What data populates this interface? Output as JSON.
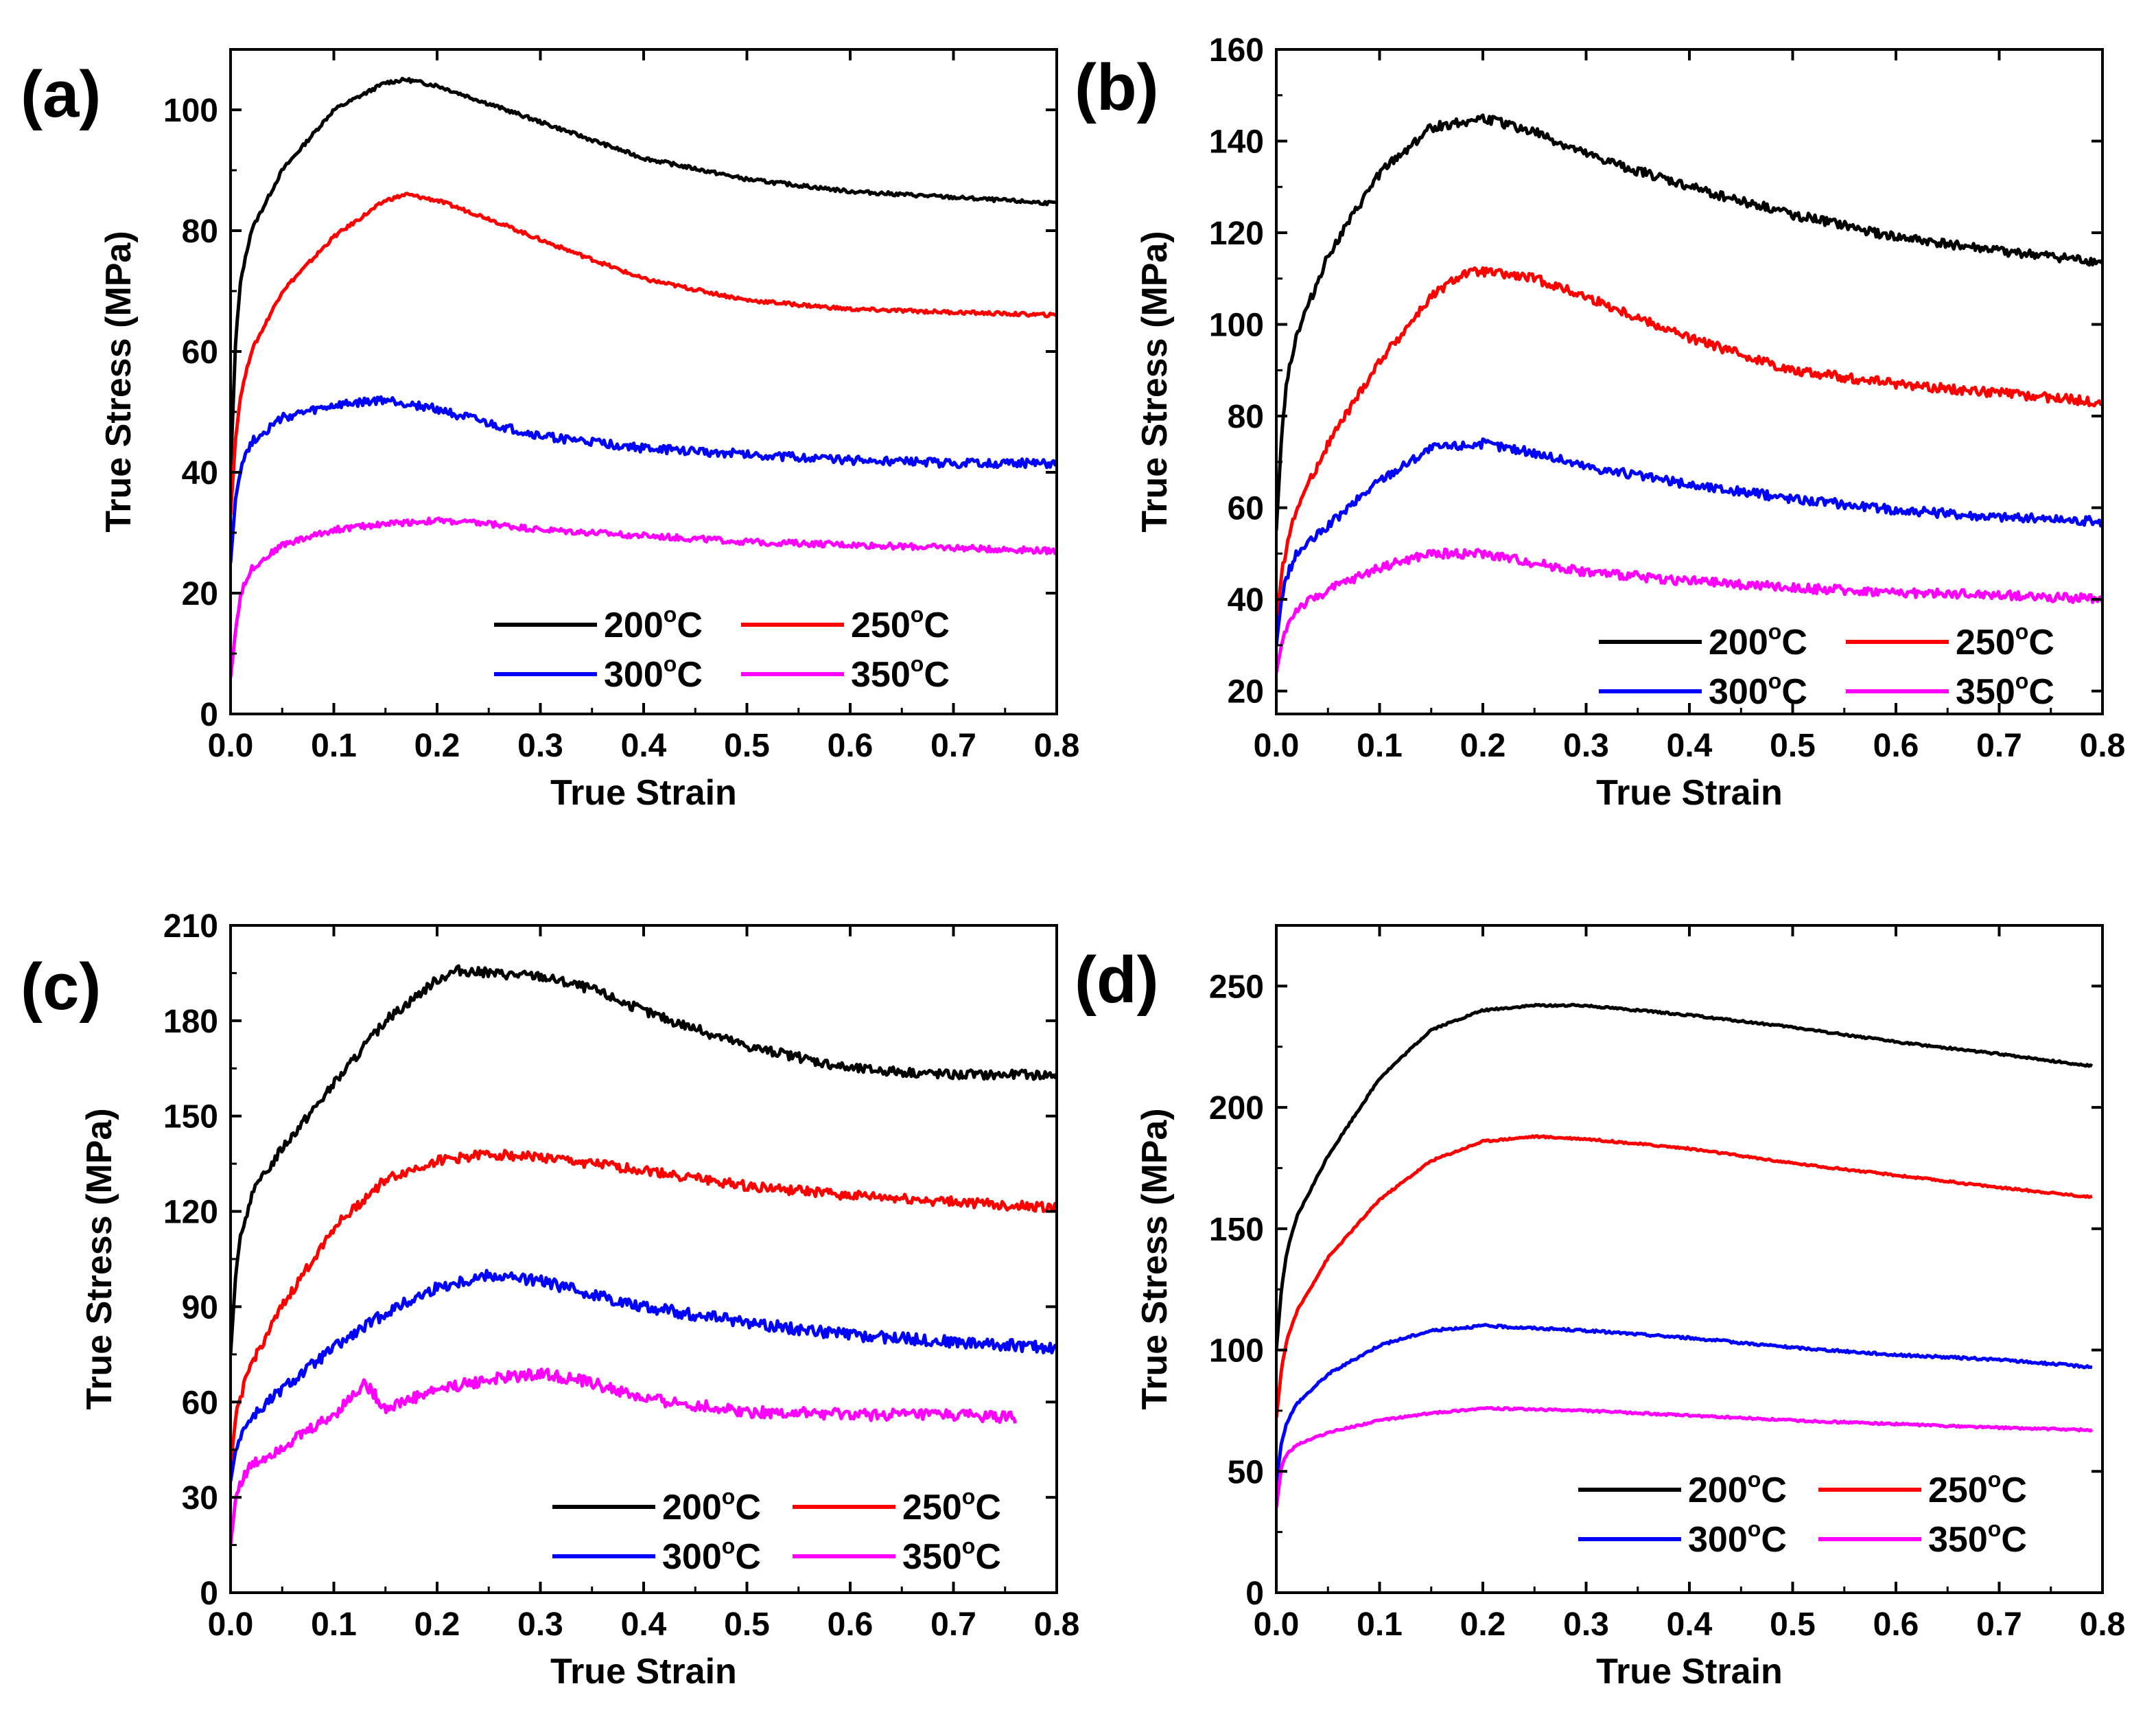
{
  "figure": {
    "colors": {
      "200": "#000000",
      "250": "#ff0000",
      "300": "#0000ff",
      "350": "#ff00ff"
    }
  },
  "chart_data": [
    {
      "panel_label": "(a)",
      "type": "line",
      "xlabel": "True Strain",
      "ylabel": "True Stress (MPa)",
      "xlim": [
        0,
        0.8
      ],
      "ylim": [
        0,
        110
      ],
      "xticks": [
        "0.0",
        "0.1",
        "0.2",
        "0.3",
        "0.4",
        "0.5",
        "0.6",
        "0.7",
        "0.8"
      ],
      "yticks": [
        "0",
        "20",
        "40",
        "60",
        "80",
        "100"
      ],
      "ytick_values": [
        0,
        20,
        40,
        60,
        80,
        100
      ],
      "legend": {
        "position": "lower-right",
        "entries": [
          "200°C",
          "250°C",
          "300°C",
          "350°C"
        ]
      },
      "series": [
        {
          "name": "200°C",
          "color": "#000000",
          "noise": 0.3,
          "x": [
            0,
            0.005,
            0.01,
            0.02,
            0.05,
            0.1,
            0.15,
            0.17,
            0.2,
            0.25,
            0.3,
            0.4,
            0.5,
            0.6,
            0.7,
            0.8
          ],
          "y": [
            40,
            62,
            72,
            80,
            90,
            100,
            104.5,
            105,
            104,
            101,
            98,
            92,
            88.5,
            86.5,
            85.5,
            84.5
          ]
        },
        {
          "name": "250°C",
          "color": "#ff0000",
          "noise": 0.3,
          "x": [
            0,
            0.005,
            0.01,
            0.02,
            0.05,
            0.1,
            0.15,
            0.17,
            0.2,
            0.25,
            0.3,
            0.4,
            0.5,
            0.6,
            0.7,
            0.8
          ],
          "y": [
            33,
            46,
            53,
            60,
            70,
            79,
            85,
            86,
            85,
            82,
            78.5,
            72,
            68.5,
            67,
            66.5,
            66
          ]
        },
        {
          "name": "300°C",
          "color": "#0000ff",
          "noise": 0.7,
          "x": [
            0,
            0.005,
            0.01,
            0.02,
            0.05,
            0.1,
            0.15,
            0.2,
            0.25,
            0.3,
            0.4,
            0.5,
            0.6,
            0.7,
            0.8
          ],
          "y": [
            25,
            36,
            41,
            45,
            49,
            51,
            52,
            50.5,
            48,
            46,
            44,
            43,
            42,
            41.5,
            41.5
          ]
        },
        {
          "name": "350°C",
          "color": "#ff00ff",
          "noise": 0.5,
          "x": [
            0,
            0.005,
            0.01,
            0.02,
            0.05,
            0.1,
            0.15,
            0.2,
            0.25,
            0.3,
            0.4,
            0.5,
            0.6,
            0.7,
            0.8
          ],
          "y": [
            6,
            14,
            20,
            24,
            28,
            30.5,
            31.5,
            32,
            31.5,
            30.5,
            29.5,
            28.5,
            28,
            27.5,
            27
          ]
        }
      ]
    },
    {
      "panel_label": "(b)",
      "type": "line",
      "xlabel": "True Strain",
      "ylabel": "True Stress (MPa)",
      "xlim": [
        0,
        0.8
      ],
      "ylim": [
        15,
        160
      ],
      "xticks": [
        "0.0",
        "0.1",
        "0.2",
        "0.3",
        "0.4",
        "0.5",
        "0.6",
        "0.7",
        "0.8"
      ],
      "yticks": [
        "20",
        "40",
        "60",
        "80",
        "100",
        "120",
        "140",
        "160"
      ],
      "ytick_values": [
        20,
        40,
        60,
        80,
        100,
        120,
        140,
        160
      ],
      "legend": {
        "position": "lower-right",
        "entries": [
          "200°C",
          "250°C",
          "300°C",
          "350°C"
        ]
      },
      "series": [
        {
          "name": "200°C",
          "color": "#000000",
          "noise": 1.0,
          "x": [
            0,
            0.005,
            0.01,
            0.02,
            0.05,
            0.1,
            0.15,
            0.2,
            0.25,
            0.3,
            0.4,
            0.5,
            0.6,
            0.7,
            0.8
          ],
          "y": [
            55,
            75,
            88,
            98,
            115,
            133,
            143,
            145,
            142,
            137,
            130,
            124,
            119,
            116,
            113.5
          ]
        },
        {
          "name": "250°C",
          "color": "#ff0000",
          "noise": 1.0,
          "x": [
            0,
            0.005,
            0.01,
            0.02,
            0.05,
            0.1,
            0.15,
            0.18,
            0.2,
            0.25,
            0.3,
            0.4,
            0.5,
            0.6,
            0.7,
            0.8
          ],
          "y": [
            35,
            45,
            52,
            60,
            74,
            92,
            106,
            111,
            111.5,
            110,
            106,
            97,
            90,
            87,
            85,
            83
          ]
        },
        {
          "name": "300°C",
          "color": "#0000ff",
          "noise": 1.0,
          "x": [
            0,
            0.005,
            0.01,
            0.02,
            0.05,
            0.1,
            0.15,
            0.2,
            0.25,
            0.3,
            0.4,
            0.5,
            0.6,
            0.7,
            0.8
          ],
          "y": [
            30,
            40,
            45,
            50,
            56,
            66,
            73,
            74,
            72,
            69,
            65,
            62,
            59.5,
            58,
            57
          ]
        },
        {
          "name": "350°C",
          "color": "#ff00ff",
          "noise": 1.0,
          "x": [
            0,
            0.005,
            0.01,
            0.02,
            0.05,
            0.1,
            0.15,
            0.2,
            0.25,
            0.3,
            0.4,
            0.5,
            0.6,
            0.7,
            0.8
          ],
          "y": [
            24,
            30,
            34,
            38,
            42,
            47,
            50,
            50,
            48,
            46,
            44,
            42.5,
            41.5,
            41,
            40
          ]
        }
      ]
    },
    {
      "panel_label": "(c)",
      "type": "line",
      "xlabel": "True Strain",
      "ylabel": "True Stress (MPa)",
      "xlim": [
        0,
        0.8
      ],
      "ylim": [
        0,
        210
      ],
      "xticks": [
        "0.0",
        "0.1",
        "0.2",
        "0.3",
        "0.4",
        "0.5",
        "0.6",
        "0.7",
        "0.8"
      ],
      "yticks": [
        "0",
        "30",
        "60",
        "90",
        "120",
        "150",
        "180",
        "210"
      ],
      "ytick_values": [
        0,
        30,
        60,
        90,
        120,
        150,
        180,
        210
      ],
      "legend": {
        "position": "lower-right",
        "entries": [
          "200°C",
          "250°C",
          "300°C",
          "350°C"
        ]
      },
      "series": [
        {
          "name": "200°C",
          "color": "#000000",
          "noise": 1.5,
          "x": [
            0,
            0.005,
            0.01,
            0.02,
            0.05,
            0.1,
            0.15,
            0.2,
            0.22,
            0.25,
            0.3,
            0.35,
            0.4,
            0.5,
            0.6,
            0.7,
            0.8
          ],
          "y": [
            75,
            100,
            112,
            125,
            140,
            160,
            180,
            193,
            196,
            195,
            194,
            190,
            183,
            172,
            165,
            163,
            163
          ]
        },
        {
          "name": "250°C",
          "color": "#ff0000",
          "noise": 1.5,
          "x": [
            0,
            0.005,
            0.01,
            0.02,
            0.05,
            0.1,
            0.15,
            0.2,
            0.25,
            0.3,
            0.4,
            0.5,
            0.6,
            0.7,
            0.8
          ],
          "y": [
            40,
            55,
            62,
            72,
            90,
            115,
            130,
            136,
            138,
            137,
            133,
            128,
            125,
            123,
            121
          ]
        },
        {
          "name": "300°C",
          "color": "#0000ff",
          "noise": 1.8,
          "x": [
            0,
            0.005,
            0.01,
            0.02,
            0.05,
            0.1,
            0.15,
            0.2,
            0.25,
            0.3,
            0.4,
            0.5,
            0.6,
            0.7,
            0.8
          ],
          "y": [
            35,
            45,
            50,
            55,
            64,
            77,
            88,
            96,
            100,
            98,
            90,
            85,
            81,
            79,
            77
          ]
        },
        {
          "name": "350°C",
          "color": "#ff00ff",
          "noise": 1.8,
          "x": [
            0,
            0.005,
            0.01,
            0.02,
            0.05,
            0.1,
            0.13,
            0.15,
            0.2,
            0.25,
            0.3,
            0.35,
            0.4,
            0.5,
            0.6,
            0.7,
            0.76
          ],
          "y": [
            15,
            30,
            35,
            40,
            46,
            56,
            66,
            58,
            64,
            67,
            69,
            66,
            61,
            57,
            56,
            56,
            55
          ]
        }
      ]
    },
    {
      "panel_label": "(d)",
      "type": "line",
      "xlabel": "True Strain",
      "ylabel": "True Stress (MPa)",
      "xlim": [
        0,
        0.8
      ],
      "ylim": [
        0,
        275
      ],
      "xticks": [
        "0.0",
        "0.1",
        "0.2",
        "0.3",
        "0.4",
        "0.5",
        "0.6",
        "0.7",
        "0.8"
      ],
      "yticks": [
        "0",
        "50",
        "100",
        "150",
        "200",
        "250"
      ],
      "ytick_values": [
        0,
        50,
        100,
        150,
        200,
        250
      ],
      "legend": {
        "position": "lower-right",
        "entries": [
          "200°C",
          "250°C",
          "300°C",
          "350°C"
        ]
      },
      "series": [
        {
          "name": "200°C",
          "color": "#000000",
          "noise": 0.4,
          "x": [
            0,
            0.005,
            0.01,
            0.02,
            0.05,
            0.1,
            0.15,
            0.2,
            0.25,
            0.3,
            0.4,
            0.5,
            0.6,
            0.7,
            0.79
          ],
          "y": [
            100,
            125,
            140,
            155,
            180,
            212,
            232,
            240,
            242,
            242,
            238,
            233,
            227,
            222,
            217
          ]
        },
        {
          "name": "250°C",
          "color": "#ff0000",
          "noise": 0.4,
          "x": [
            0,
            0.005,
            0.01,
            0.02,
            0.05,
            0.1,
            0.15,
            0.2,
            0.25,
            0.3,
            0.4,
            0.5,
            0.6,
            0.7,
            0.79
          ],
          "y": [
            72,
            92,
            104,
            116,
            138,
            162,
            178,
            186,
            188,
            187,
            183,
            177,
            172,
            167,
            163
          ]
        },
        {
          "name": "300°C",
          "color": "#0000ff",
          "noise": 0.5,
          "x": [
            0,
            0.005,
            0.01,
            0.02,
            0.05,
            0.1,
            0.15,
            0.2,
            0.25,
            0.3,
            0.4,
            0.5,
            0.6,
            0.7,
            0.79
          ],
          "y": [
            45,
            62,
            70,
            78,
            90,
            102,
            108,
            110,
            109,
            108,
            105,
            101,
            98,
            96,
            93
          ]
        },
        {
          "name": "350°C",
          "color": "#ff00ff",
          "noise": 0.4,
          "x": [
            0,
            0.005,
            0.01,
            0.02,
            0.05,
            0.1,
            0.15,
            0.2,
            0.25,
            0.3,
            0.4,
            0.5,
            0.6,
            0.7,
            0.79
          ],
          "y": [
            35,
            52,
            57,
            61,
            66,
            71,
            74,
            76,
            75.5,
            75,
            73,
            71,
            69.5,
            68,
            67
          ]
        }
      ]
    }
  ]
}
